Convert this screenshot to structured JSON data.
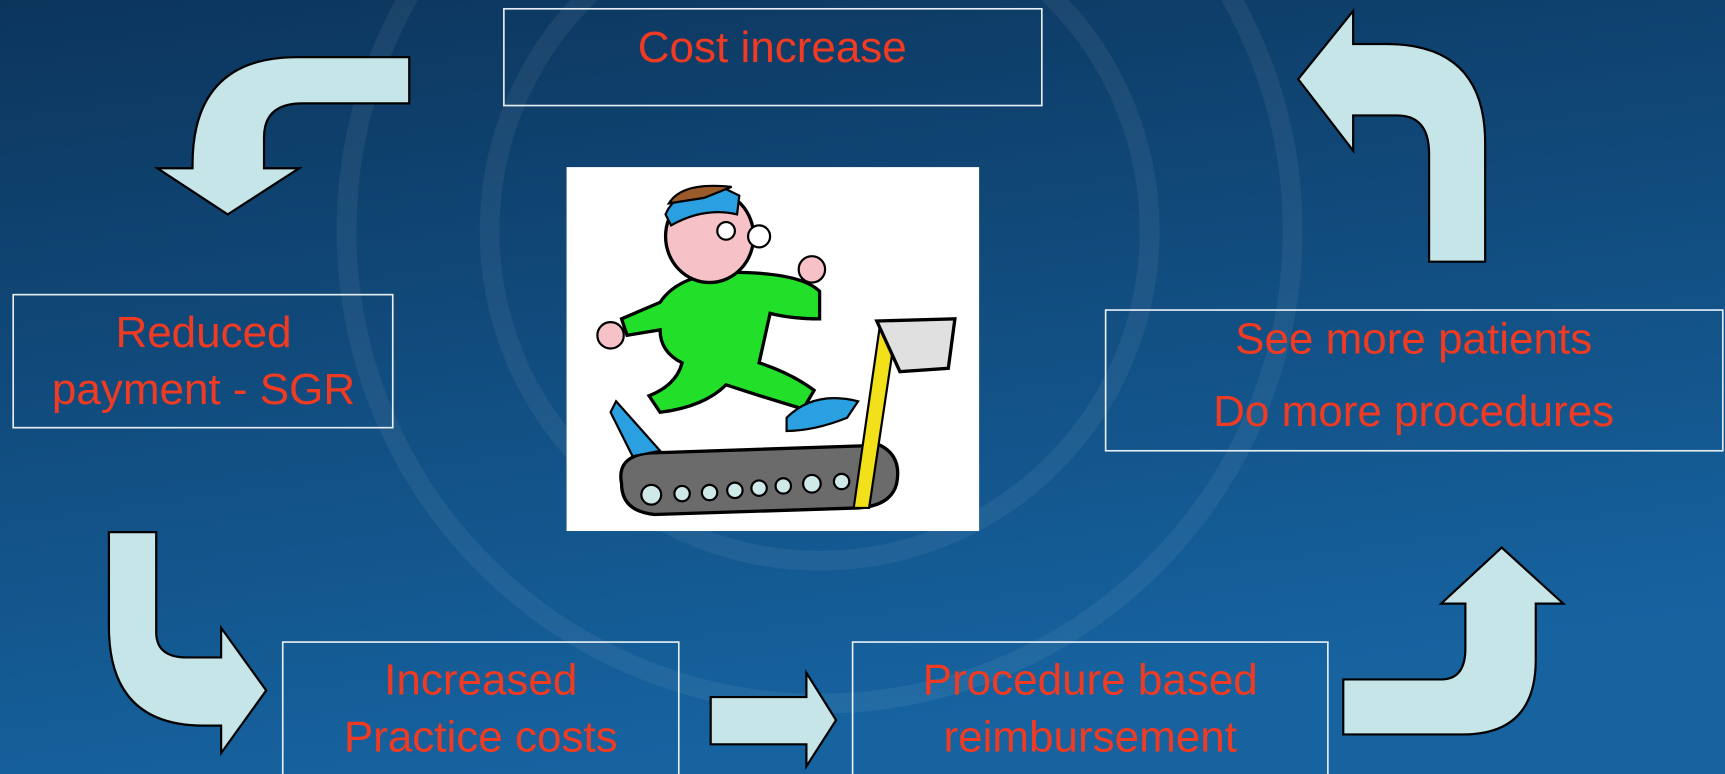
{
  "nodes": [
    {
      "lines": [
        "Cost increase"
      ]
    },
    {
      "lines": [
        "Reduced",
        "payment - SGR"
      ]
    },
    {
      "lines": [
        "See more patients",
        "Do more procedures"
      ]
    },
    {
      "lines": [
        "Increased",
        "Practice costs"
      ]
    },
    {
      "lines": [
        "Procedure based",
        "reimbursement"
      ]
    }
  ]
}
